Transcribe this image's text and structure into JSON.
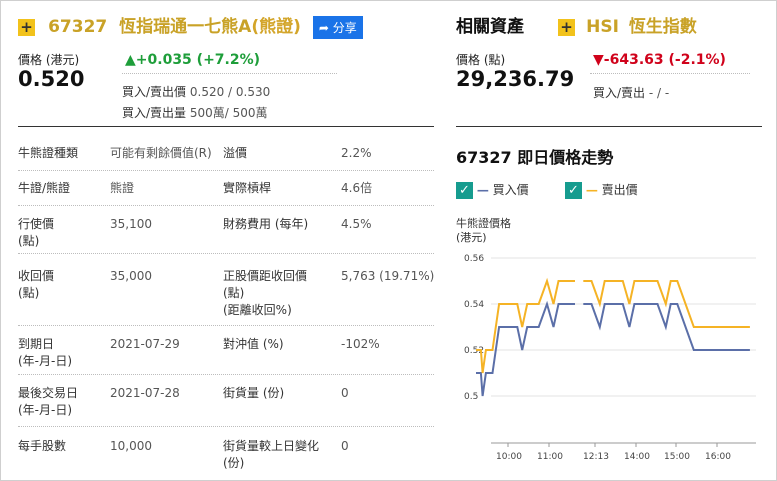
{
  "warrant": {
    "code": "67327",
    "name": "恆指瑞通一七熊A",
    "type_tag": "(熊證)",
    "share_label": "分享",
    "price_label": "價格 (港元)",
    "price": "0.520",
    "change": "+0.035 (+7.2%)",
    "bid_ask_label": "買入/賣出價",
    "bid_ask": "0.520 / 0.530",
    "bid_ask_qty_label": "買入/賣出量",
    "bid_ask_qty": "500萬/ 500萬"
  },
  "related": {
    "section_title": "相關資產",
    "code": "HSI",
    "name": "恆生指數",
    "price_label": "價格 (點)",
    "price": "29,236.79",
    "change": "-643.63 (-2.1%)",
    "bid_ask_label": "買入/賣出",
    "bid_ask": "- / -"
  },
  "details": [
    {
      "label": "牛熊證種類",
      "value": "可能有剩餘價值(R)",
      "label2": "溢價",
      "value2": "2.2%"
    },
    {
      "label": "牛證/熊證",
      "value": "熊證",
      "label2": "實際槓桿",
      "value2": "4.6倍"
    },
    {
      "label": "行使價\n(點)",
      "value": "35,100",
      "label2": "財務費用 (每年)",
      "value2": "4.5%"
    },
    {
      "label": "收回價\n(點)",
      "value": "35,000",
      "label2": "正股價距收回價\n(點)\n(距離收回%)",
      "value2": "5,763 (19.71%)"
    },
    {
      "label": "到期日\n(年-月-日)",
      "value": "2021-07-29",
      "label2": "對沖值 (%)",
      "value2": "-102%"
    },
    {
      "label": "最後交易日\n(年-月-日)",
      "value": "2021-07-28",
      "label2": "街貨量 (份)",
      "value2": "0"
    },
    {
      "label": "每手股數",
      "value": "10,000",
      "label2": "街貨量較上日變化\n(份)",
      "value2": "0"
    }
  ],
  "chart_section": {
    "title": "67327 即日價格走勢",
    "legend_bid": "買入價",
    "legend_ask": "賣出價",
    "bid_color": "#5b6fa8",
    "ask_color": "#f5b325",
    "check_color": "#169c8f"
  },
  "chart_data": {
    "type": "line",
    "ylabel": "牛熊證價格\n(港元)",
    "ylim": [
      0.49,
      0.56
    ],
    "yticks": [
      "0.56",
      "0.54",
      "0.52",
      "0.5"
    ],
    "xticks": [
      "10:00",
      "11:00",
      "12:13",
      "14:00",
      "15:00",
      "16:00"
    ],
    "series": [
      {
        "name": "買入價",
        "segments": [
          [
            [
              0,
              0.51
            ],
            [
              3,
              0.51
            ],
            [
              4,
              0.5
            ],
            [
              6,
              0.51
            ],
            [
              10,
              0.51
            ],
            [
              14,
              0.53
            ],
            [
              25,
              0.53
            ],
            [
              28,
              0.52
            ],
            [
              31,
              0.53
            ],
            [
              38,
              0.53
            ],
            [
              43,
              0.54
            ],
            [
              47,
              0.53
            ],
            [
              50,
              0.54
            ],
            [
              60,
              0.54
            ]
          ],
          [
            [
              65,
              0.54
            ],
            [
              70,
              0.54
            ],
            [
              75,
              0.53
            ],
            [
              78,
              0.54
            ],
            [
              89,
              0.54
            ],
            [
              93,
              0.53
            ],
            [
              96,
              0.54
            ],
            [
              110,
              0.54
            ],
            [
              115,
              0.53
            ],
            [
              118,
              0.54
            ],
            [
              122,
              0.54
            ],
            [
              132,
              0.52
            ],
            [
              166,
              0.52
            ]
          ]
        ]
      },
      {
        "name": "賣出價",
        "segments": [
          [
            [
              0,
              0.52
            ],
            [
              3,
              0.52
            ],
            [
              4,
              0.51
            ],
            [
              6,
              0.52
            ],
            [
              10,
              0.52
            ],
            [
              14,
              0.54
            ],
            [
              25,
              0.54
            ],
            [
              28,
              0.53
            ],
            [
              31,
              0.54
            ],
            [
              38,
              0.54
            ],
            [
              43,
              0.55
            ],
            [
              47,
              0.54
            ],
            [
              50,
              0.55
            ],
            [
              60,
              0.55
            ]
          ],
          [
            [
              65,
              0.55
            ],
            [
              70,
              0.55
            ],
            [
              75,
              0.54
            ],
            [
              78,
              0.55
            ],
            [
              89,
              0.55
            ],
            [
              93,
              0.54
            ],
            [
              96,
              0.55
            ],
            [
              110,
              0.55
            ],
            [
              115,
              0.54
            ],
            [
              118,
              0.55
            ],
            [
              122,
              0.55
            ],
            [
              132,
              0.53
            ],
            [
              166,
              0.53
            ]
          ]
        ]
      }
    ]
  }
}
